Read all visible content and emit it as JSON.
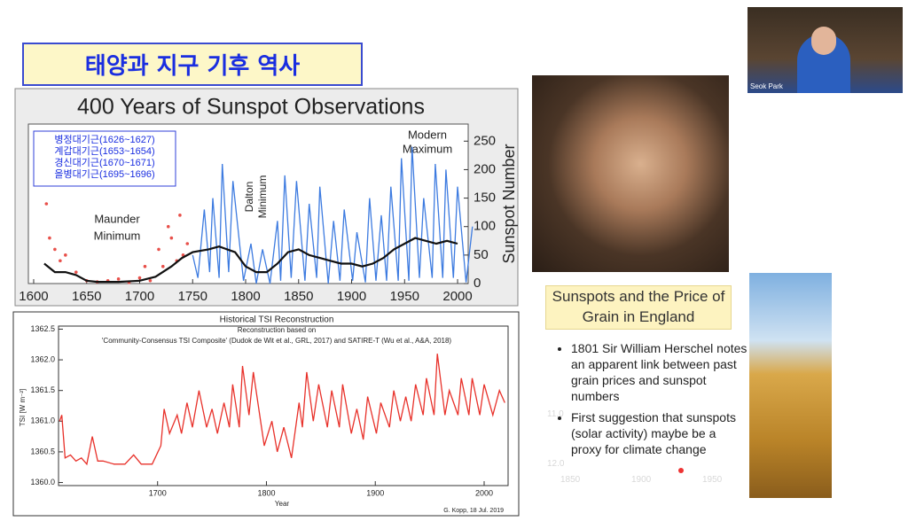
{
  "slide_title": "태양과 지구 기후 역사",
  "chart_data": [
    {
      "type": "line",
      "title": "400 Years of Sunspot Observations",
      "y2label": "Sunspot Number",
      "annotations": [
        "Maunder",
        "Minimum",
        "Dalton",
        "Minimum",
        "Modern",
        "Maximum"
      ],
      "legend_lines": [
        "병정대기근(1626~1627)",
        "계갑대기근(1653~1654)",
        "경신대기근(1670~1671)",
        "을병대기근(1695~1696)"
      ],
      "xlim": [
        1595,
        2010
      ],
      "xticks": [
        1600,
        1650,
        1700,
        1750,
        1800,
        1850,
        1900,
        1950,
        2000
      ],
      "ylim": [
        0,
        280
      ],
      "yticks": [
        0,
        50,
        100,
        150,
        200,
        250
      ],
      "y_axis_side": "right",
      "series": [
        {
          "type": "scatter",
          "color": "#e8504a",
          "x": [
            1612,
            1615,
            1620,
            1625,
            1630,
            1640,
            1650,
            1660,
            1670,
            1680,
            1690,
            1700,
            1705,
            1710,
            1718,
            1722,
            1727,
            1730,
            1735,
            1738,
            1741,
            1745
          ],
          "values": [
            140,
            80,
            60,
            40,
            50,
            20,
            5,
            3,
            5,
            8,
            2,
            10,
            30,
            5,
            60,
            30,
            100,
            80,
            40,
            120,
            50,
            70
          ]
        },
        {
          "type": "line",
          "color": "#3d7be0",
          "x": [
            1750,
            1755,
            1761,
            1766,
            1769,
            1775,
            1778,
            1784,
            1788,
            1798,
            1805,
            1810,
            1816,
            1823,
            1830,
            1833,
            1837,
            1843,
            1848,
            1856,
            1860,
            1867,
            1870,
            1878,
            1883,
            1889,
            1893,
            1901,
            1905,
            1913,
            1917,
            1923,
            1928,
            1933,
            1937,
            1944,
            1947,
            1954,
            1957,
            1964,
            1968,
            1976,
            1979,
            1986,
            1989,
            1996,
            2000,
            2008,
            2014
          ],
          "values": [
            50,
            10,
            130,
            20,
            150,
            10,
            210,
            20,
            180,
            5,
            70,
            0,
            60,
            0,
            110,
            5,
            190,
            10,
            180,
            5,
            140,
            10,
            170,
            0,
            110,
            5,
            130,
            5,
            90,
            2,
            150,
            5,
            120,
            5,
            170,
            5,
            220,
            5,
            240,
            10,
            150,
            10,
            210,
            10,
            200,
            10,
            170,
            2,
            100
          ]
        },
        {
          "type": "line",
          "color": "#111111",
          "x": [
            1610,
            1620,
            1630,
            1640,
            1650,
            1660,
            1680,
            1700,
            1715,
            1730,
            1740,
            1750,
            1765,
            1775,
            1790,
            1800,
            1810,
            1820,
            1830,
            1840,
            1850,
            1860,
            1870,
            1880,
            1890,
            1900,
            1910,
            1920,
            1930,
            1940,
            1950,
            1960,
            1970,
            1980,
            1990,
            2000
          ],
          "values": [
            35,
            20,
            20,
            15,
            5,
            3,
            3,
            5,
            12,
            30,
            45,
            55,
            60,
            65,
            55,
            30,
            20,
            20,
            35,
            55,
            60,
            50,
            45,
            40,
            35,
            35,
            30,
            35,
            45,
            60,
            70,
            80,
            75,
            70,
            75,
            70
          ]
        }
      ]
    },
    {
      "type": "line",
      "title": "Historical TSI Reconstruction",
      "subtitle": [
        "Reconstruction based on",
        "'Community-Consensus TSI Composite' (Dudok de Wit et al., GRL, 2017) and SATIRE-T (Wu et al., A&A, 2018)"
      ],
      "xlabel": "Year",
      "ylabel": "TSI [W m⁻²]",
      "credit": "G. Kopp, 18 Jul. 2019",
      "xlim": [
        1609,
        2022
      ],
      "xticks": [
        1700,
        1800,
        1900,
        2000
      ],
      "ylim": [
        1359.95,
        1362.55
      ],
      "yticks": [
        {
          "value": 1360.0,
          "label": "1360.0"
        },
        1360.5,
        {
          "value": 1361.0,
          "label": "1361.0"
        },
        1361.5,
        {
          "value": 1362.0,
          "label": "1362.0"
        },
        1362.5
      ],
      "y_axis_side": "left",
      "series": [
        {
          "type": "line",
          "color": "#e8312a",
          "x": [
            1610,
            1612,
            1615,
            1620,
            1625,
            1630,
            1635,
            1640,
            1645,
            1650,
            1660,
            1670,
            1678,
            1685,
            1695,
            1703,
            1706,
            1711,
            1718,
            1722,
            1727,
            1732,
            1738,
            1745,
            1750,
            1755,
            1761,
            1766,
            1769,
            1775,
            1778,
            1784,
            1788,
            1798,
            1805,
            1810,
            1816,
            1823,
            1830,
            1833,
            1837,
            1843,
            1848,
            1856,
            1860,
            1867,
            1870,
            1878,
            1883,
            1889,
            1893,
            1901,
            1905,
            1913,
            1917,
            1923,
            1928,
            1933,
            1937,
            1944,
            1947,
            1954,
            1957,
            1964,
            1968,
            1976,
            1979,
            1986,
            1989,
            1996,
            2000,
            2008,
            2014,
            2019
          ],
          "values": [
            1361.0,
            1361.1,
            1360.4,
            1360.45,
            1360.35,
            1360.4,
            1360.3,
            1360.75,
            1360.35,
            1360.35,
            1360.3,
            1360.3,
            1360.45,
            1360.3,
            1360.3,
            1360.6,
            1361.2,
            1360.8,
            1361.1,
            1360.8,
            1361.3,
            1360.9,
            1361.5,
            1360.9,
            1361.2,
            1360.8,
            1361.3,
            1360.9,
            1361.6,
            1360.9,
            1361.9,
            1361.1,
            1361.8,
            1360.6,
            1361.0,
            1360.5,
            1360.9,
            1360.4,
            1361.3,
            1360.9,
            1361.8,
            1361.0,
            1361.6,
            1360.9,
            1361.5,
            1360.9,
            1361.6,
            1360.8,
            1361.2,
            1360.7,
            1361.4,
            1360.8,
            1361.3,
            1360.9,
            1361.5,
            1361.0,
            1361.4,
            1361.0,
            1361.6,
            1361.1,
            1361.7,
            1361.1,
            1362.1,
            1361.1,
            1361.5,
            1361.1,
            1361.7,
            1361.1,
            1361.7,
            1361.1,
            1361.6,
            1361.1,
            1361.5,
            1361.3
          ]
        }
      ]
    }
  ],
  "grain_panel": {
    "title": "Sunspots and the Price of Grain in England",
    "bullets": [
      "1801 Sir William Herschel notes an apparent link between past grain prices and sunspot numbers",
      "First suggestion that sunspots (solar activity) maybe be a proxy for climate change"
    ],
    "faint_labels": [
      "11.0",
      "12.0",
      "1850",
      "1900",
      "1950"
    ]
  },
  "video_tile": {
    "name": "Seok Park"
  }
}
